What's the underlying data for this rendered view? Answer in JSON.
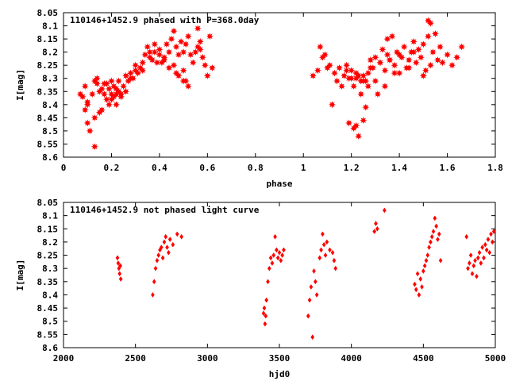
{
  "chart_data": [
    {
      "type": "scatter",
      "title": "110146+1452.9 phased with P=368.0day",
      "xlabel": "phase",
      "ylabel": "I[mag]",
      "xlim": [
        0,
        1.8
      ],
      "ylim": [
        8.6,
        8.05
      ],
      "y_inverted": true,
      "xticks": [
        "0",
        "0.2",
        "0.4",
        "0.6",
        "0.8",
        "1",
        "1.2",
        "1.4",
        "1.6",
        "1.8"
      ],
      "yticks": [
        "8.05",
        "8.1",
        "8.15",
        "8.2",
        "8.25",
        "8.3",
        "8.35",
        "8.4",
        "8.45",
        "8.5",
        "8.55",
        "8.6"
      ],
      "grid": false,
      "marker": "star",
      "color": "#ff0000",
      "series": [
        {
          "x": [
            0.07,
            0.08,
            0.09,
            0.1,
            0.1,
            0.11,
            0.12,
            0.13,
            0.13,
            0.14,
            0.15,
            0.15,
            0.16,
            0.17,
            0.17,
            0.18,
            0.18,
            0.19,
            0.19,
            0.2,
            0.2,
            0.21,
            0.21,
            0.22,
            0.22,
            0.23,
            0.23,
            0.24,
            0.25,
            0.26,
            0.26,
            0.27,
            0.28,
            0.29,
            0.3,
            0.3,
            0.31,
            0.32,
            0.33,
            0.34,
            0.35,
            0.36,
            0.36,
            0.37,
            0.38,
            0.38,
            0.39,
            0.4,
            0.4,
            0.41,
            0.42,
            0.43,
            0.44,
            0.45,
            0.46,
            0.46,
            0.47,
            0.48,
            0.48,
            0.49,
            0.5,
            0.5,
            0.51,
            0.52,
            0.52,
            0.53,
            0.54,
            0.55,
            0.56,
            0.57,
            0.58,
            0.59,
            0.6,
            0.61,
            0.62,
            0.2,
            0.22,
            0.1,
            0.14,
            0.13,
            0.47,
            0.5,
            0.56,
            0.09,
            0.16,
            0.24,
            0.28,
            0.33,
            0.42,
            0.44,
            0.51,
            0.57
          ],
          "y": [
            8.36,
            8.37,
            8.33,
            8.47,
            8.39,
            8.5,
            8.36,
            8.31,
            8.56,
            8.3,
            8.43,
            8.35,
            8.42,
            8.36,
            8.32,
            8.38,
            8.32,
            8.4,
            8.34,
            8.36,
            8.31,
            8.37,
            8.33,
            8.4,
            8.34,
            8.35,
            8.31,
            8.37,
            8.33,
            8.29,
            8.35,
            8.31,
            8.28,
            8.3,
            8.27,
            8.25,
            8.28,
            8.26,
            8.24,
            8.21,
            8.18,
            8.2,
            8.22,
            8.23,
            8.2,
            8.17,
            8.24,
            8.21,
            8.19,
            8.24,
            8.22,
            8.17,
            8.2,
            8.15,
            8.12,
            8.25,
            8.18,
            8.29,
            8.21,
            8.16,
            8.2,
            8.31,
            8.17,
            8.14,
            8.33,
            8.21,
            8.24,
            8.2,
            8.11,
            8.16,
            8.22,
            8.25,
            8.29,
            8.14,
            8.26,
            8.38,
            8.36,
            8.4,
            8.32,
            8.45,
            8.28,
            8.27,
            8.18,
            8.42,
            8.34,
            8.36,
            8.3,
            8.27,
            8.23,
            8.26,
            8.31,
            8.19
          ],
          "name": ""
        },
        {
          "x": [
            1.04,
            1.06,
            1.07,
            1.08,
            1.09,
            1.1,
            1.11,
            1.12,
            1.13,
            1.14,
            1.15,
            1.16,
            1.17,
            1.18,
            1.19,
            1.19,
            1.2,
            1.21,
            1.21,
            1.22,
            1.23,
            1.23,
            1.24,
            1.25,
            1.25,
            1.26,
            1.27,
            1.27,
            1.28,
            1.29,
            1.3,
            1.3,
            1.31,
            1.32,
            1.33,
            1.34,
            1.35,
            1.35,
            1.36,
            1.37,
            1.38,
            1.39,
            1.4,
            1.41,
            1.42,
            1.43,
            1.44,
            1.45,
            1.46,
            1.47,
            1.48,
            1.49,
            1.5,
            1.51,
            1.52,
            1.52,
            1.53,
            1.54,
            1.55,
            1.56,
            1.57,
            1.58,
            1.6,
            1.62,
            1.64,
            1.66,
            1.2,
            1.22,
            1.24,
            1.26,
            1.28,
            1.32,
            1.34,
            1.36,
            1.38,
            1.4,
            1.44,
            1.46,
            1.5,
            1.53,
            1.18,
            1.22,
            1.25
          ],
          "y": [
            8.29,
            8.27,
            8.18,
            8.22,
            8.21,
            8.26,
            8.25,
            8.4,
            8.28,
            8.31,
            8.26,
            8.33,
            8.29,
            8.25,
            8.47,
            8.3,
            8.27,
            8.49,
            8.33,
            8.28,
            8.52,
            8.29,
            8.31,
            8.46,
            8.29,
            8.41,
            8.33,
            8.28,
            8.23,
            8.26,
            8.22,
            8.31,
            8.36,
            8.24,
            8.19,
            8.27,
            8.21,
            8.15,
            8.23,
            8.14,
            8.25,
            8.2,
            8.28,
            8.22,
            8.18,
            8.26,
            8.23,
            8.2,
            8.16,
            8.24,
            8.19,
            8.22,
            8.17,
            8.27,
            8.08,
            8.14,
            8.09,
            8.2,
            8.13,
            8.23,
            8.18,
            8.24,
            8.21,
            8.25,
            8.22,
            8.18,
            8.3,
            8.48,
            8.36,
            8.31,
            8.26,
            8.24,
            8.33,
            8.23,
            8.28,
            8.21,
            8.26,
            8.2,
            8.29,
            8.25,
            8.27,
            8.3,
            8.31
          ],
          "name": ""
        }
      ]
    },
    {
      "type": "scatter",
      "title": "110146+1452.9 not phased light curve",
      "xlabel": "hjd0",
      "ylabel": "I[mag]",
      "xlim": [
        2000,
        5000
      ],
      "ylim": [
        8.6,
        8.05
      ],
      "y_inverted": true,
      "xticks": [
        "2000",
        "2500",
        "3000",
        "3500",
        "4000",
        "4500",
        "5000"
      ],
      "yticks": [
        "8.05",
        "8.1",
        "8.15",
        "8.2",
        "8.25",
        "8.3",
        "8.35",
        "8.4",
        "8.45",
        "8.5",
        "8.55",
        "8.6"
      ],
      "grid": false,
      "marker": "diamond",
      "color": "#ff0000",
      "series": [
        {
          "x": [
            2375,
            2380,
            2385,
            2390,
            2395,
            2398,
            2620,
            2630,
            2640,
            2650,
            2660,
            2670,
            2680,
            2690,
            2700,
            2710,
            2720,
            2730,
            2740,
            2760,
            2790,
            2820,
            3390,
            3395,
            3400,
            3405,
            3410,
            3420,
            3430,
            3440,
            3450,
            3460,
            3470,
            3480,
            3490,
            3500,
            3510,
            3520,
            3530,
            3700,
            3710,
            3720,
            3730,
            3740,
            3750,
            3760,
            3780,
            3790,
            3800,
            3810,
            3820,
            3830,
            3850,
            3870,
            3880,
            3890,
            4160,
            4170,
            4180,
            4230,
            4440,
            4450,
            4460,
            4470,
            4480,
            4490,
            4500,
            4510,
            4520,
            4530,
            4540,
            4550,
            4560,
            4570,
            4580,
            4590,
            4600,
            4610,
            4620,
            4800,
            4810,
            4820,
            4830,
            4840,
            4850,
            4860,
            4870,
            4880,
            4890,
            4900,
            4910,
            4920,
            4930,
            4940,
            4950,
            4960,
            4970,
            4980,
            4990
          ],
          "y": [
            8.26,
            8.28,
            8.3,
            8.32,
            8.29,
            8.34,
            8.4,
            8.35,
            8.3,
            8.27,
            8.25,
            8.23,
            8.22,
            8.26,
            8.2,
            8.18,
            8.22,
            8.24,
            8.19,
            8.21,
            8.17,
            8.18,
            8.47,
            8.45,
            8.51,
            8.48,
            8.42,
            8.35,
            8.3,
            8.26,
            8.28,
            8.25,
            8.18,
            8.23,
            8.26,
            8.24,
            8.27,
            8.25,
            8.23,
            8.48,
            8.42,
            8.37,
            8.56,
            8.31,
            8.35,
            8.4,
            8.26,
            8.23,
            8.17,
            8.21,
            8.25,
            8.2,
            8.23,
            8.24,
            8.27,
            8.3,
            8.16,
            8.13,
            8.15,
            8.08,
            8.36,
            8.38,
            8.32,
            8.4,
            8.34,
            8.37,
            8.31,
            8.29,
            8.27,
            8.25,
            8.22,
            8.2,
            8.18,
            8.16,
            8.11,
            8.14,
            8.19,
            8.17,
            8.27,
            8.18,
            8.3,
            8.28,
            8.25,
            8.32,
            8.29,
            8.27,
            8.33,
            8.26,
            8.24,
            8.28,
            8.22,
            8.26,
            8.21,
            8.23,
            8.19,
            8.24,
            8.17,
            8.2,
            8.16
          ],
          "name": ""
        }
      ]
    }
  ]
}
